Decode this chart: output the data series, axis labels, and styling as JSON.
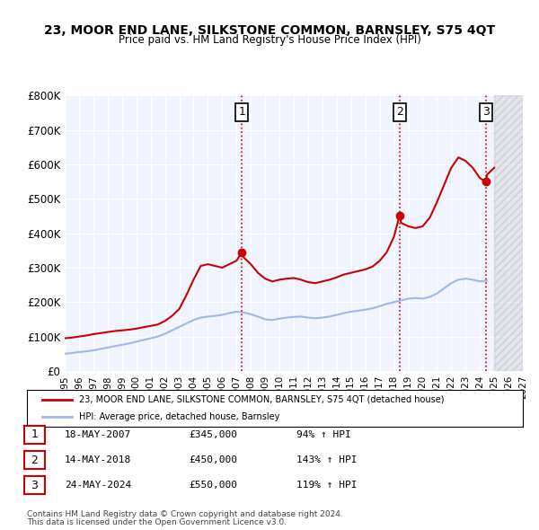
{
  "title": "23, MOOR END LANE, SILKSTONE COMMON, BARNSLEY, S75 4QT",
  "subtitle": "Price paid vs. HM Land Registry's House Price Index (HPI)",
  "ylim": [
    0,
    800000
  ],
  "yticks": [
    0,
    100000,
    200000,
    300000,
    400000,
    500000,
    600000,
    700000,
    800000
  ],
  "ytick_labels": [
    "£0",
    "£100K",
    "£200K",
    "£300K",
    "£400K",
    "£500K",
    "£600K",
    "£700K",
    "£800K"
  ],
  "xlim_start": 1995,
  "xlim_end": 2027,
  "xticks": [
    1995,
    1996,
    1997,
    1998,
    1999,
    2000,
    2001,
    2002,
    2003,
    2004,
    2005,
    2006,
    2007,
    2008,
    2009,
    2010,
    2011,
    2012,
    2013,
    2014,
    2015,
    2016,
    2017,
    2018,
    2019,
    2020,
    2021,
    2022,
    2023,
    2024,
    2025,
    2026,
    2027
  ],
  "background_color": "#ffffff",
  "plot_bg_color": "#f0f4ff",
  "grid_color": "#ffffff",
  "hpi_line_color": "#a0b8e8",
  "price_line_color": "#cc0000",
  "sale_marker_color": "#cc0000",
  "vline_color": "#cc0000",
  "vline_style": ":",
  "legend_label_price": "23, MOOR END LANE, SILKSTONE COMMON, BARNSLEY, S75 4QT (detached house)",
  "legend_label_hpi": "HPI: Average price, detached house, Barnsley",
  "sales": [
    {
      "label": "1",
      "date_str": "18-MAY-2007",
      "year": 2007.38,
      "price": 345000,
      "hpi_pct": "94%",
      "arrow": "↑"
    },
    {
      "label": "2",
      "date_str": "14-MAY-2018",
      "year": 2018.38,
      "price": 450000,
      "hpi_pct": "143%",
      "arrow": "↑"
    },
    {
      "label": "3",
      "date_str": "24-MAY-2024",
      "year": 2024.4,
      "price": 550000,
      "hpi_pct": "119%",
      "arrow": "↑"
    }
  ],
  "footer_line1": "Contains HM Land Registry data © Crown copyright and database right 2024.",
  "footer_line2": "This data is licensed under the Open Government Licence v3.0.",
  "hashed_area_color": "#e8e0e0",
  "hpi_data_x": [
    1995.0,
    1995.5,
    1996.0,
    1996.5,
    1997.0,
    1997.5,
    1998.0,
    1998.5,
    1999.0,
    1999.5,
    2000.0,
    2000.5,
    2001.0,
    2001.5,
    2002.0,
    2002.5,
    2003.0,
    2003.5,
    2004.0,
    2004.5,
    2005.0,
    2005.5,
    2006.0,
    2006.5,
    2007.0,
    2007.5,
    2008.0,
    2008.5,
    2009.0,
    2009.5,
    2010.0,
    2010.5,
    2011.0,
    2011.5,
    2012.0,
    2012.5,
    2013.0,
    2013.5,
    2014.0,
    2014.5,
    2015.0,
    2015.5,
    2016.0,
    2016.5,
    2017.0,
    2017.5,
    2018.0,
    2018.5,
    2019.0,
    2019.5,
    2020.0,
    2020.5,
    2021.0,
    2021.5,
    2022.0,
    2022.5,
    2023.0,
    2023.5,
    2024.0,
    2024.5
  ],
  "hpi_data_y": [
    50000,
    52000,
    55000,
    57000,
    60000,
    64000,
    68000,
    72000,
    76000,
    80000,
    85000,
    90000,
    95000,
    100000,
    108000,
    118000,
    128000,
    138000,
    148000,
    155000,
    158000,
    160000,
    163000,
    168000,
    172000,
    170000,
    165000,
    158000,
    150000,
    148000,
    152000,
    155000,
    157000,
    158000,
    155000,
    153000,
    155000,
    158000,
    163000,
    168000,
    172000,
    175000,
    178000,
    182000,
    188000,
    195000,
    200000,
    205000,
    210000,
    212000,
    210000,
    215000,
    225000,
    240000,
    255000,
    265000,
    268000,
    265000,
    260000,
    262000
  ],
  "price_data_x": [
    1995.0,
    1995.5,
    1996.0,
    1996.5,
    1997.0,
    1997.5,
    1998.0,
    1998.5,
    1999.0,
    1999.5,
    2000.0,
    2000.5,
    2001.0,
    2001.5,
    2002.0,
    2002.5,
    2003.0,
    2003.5,
    2004.0,
    2004.5,
    2005.0,
    2005.5,
    2006.0,
    2006.5,
    2007.0,
    2007.38,
    2007.5,
    2008.0,
    2008.5,
    2009.0,
    2009.5,
    2010.0,
    2010.5,
    2011.0,
    2011.5,
    2012.0,
    2012.5,
    2013.0,
    2013.5,
    2014.0,
    2014.5,
    2015.0,
    2015.5,
    2016.0,
    2016.5,
    2017.0,
    2017.5,
    2018.0,
    2018.38,
    2018.5,
    2019.0,
    2019.5,
    2020.0,
    2020.5,
    2021.0,
    2021.5,
    2022.0,
    2022.5,
    2023.0,
    2023.5,
    2024.0,
    2024.4,
    2024.5,
    2025.0
  ],
  "price_data_y": [
    95000,
    97000,
    100000,
    103000,
    107000,
    110000,
    113000,
    116000,
    118000,
    120000,
    123000,
    127000,
    131000,
    135000,
    145000,
    160000,
    180000,
    220000,
    265000,
    305000,
    310000,
    305000,
    300000,
    310000,
    320000,
    345000,
    330000,
    310000,
    285000,
    268000,
    260000,
    265000,
    268000,
    270000,
    265000,
    258000,
    255000,
    260000,
    265000,
    272000,
    280000,
    285000,
    290000,
    295000,
    303000,
    320000,
    345000,
    390000,
    450000,
    430000,
    420000,
    415000,
    420000,
    445000,
    490000,
    540000,
    590000,
    620000,
    610000,
    590000,
    560000,
    550000,
    570000,
    590000
  ]
}
